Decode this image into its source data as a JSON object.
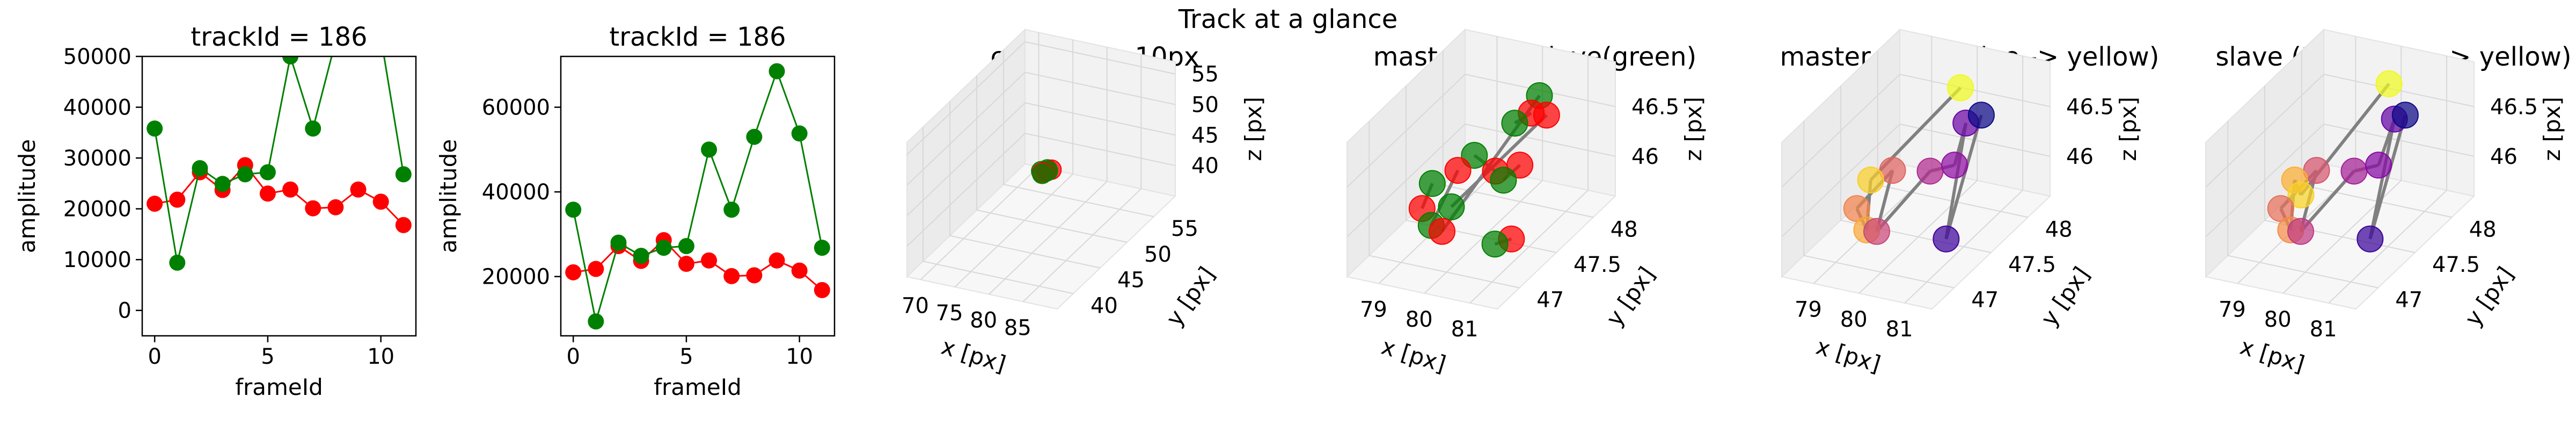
{
  "figure": {
    "suptitle": "Track at a glance"
  },
  "colors": {
    "master": "#ff0000",
    "slave": "#008000",
    "connector": "#808080",
    "pane": "#f2f2f2",
    "pane_grid": "#e3e3e3"
  },
  "chart_data": [
    {
      "type": "line",
      "title": "trackId = 186",
      "xlabel": "frameId",
      "ylabel": "amplitude",
      "xlim": [
        -0.55,
        11.55
      ],
      "ylim": [
        -5000,
        50000
      ],
      "x_ticks": [
        0,
        5,
        10
      ],
      "y_ticks": [
        0,
        10000,
        20000,
        30000,
        40000,
        50000
      ],
      "grid": false,
      "x": [
        0,
        1,
        2,
        3,
        4,
        5,
        6,
        7,
        8,
        9,
        10,
        11
      ],
      "series": [
        {
          "color": "red",
          "values": [
            21000,
            21800,
            27200,
            23700,
            28600,
            23000,
            23800,
            20100,
            20300,
            23800,
            21400,
            16800
          ]
        },
        {
          "color": "green",
          "values": [
            35800,
            9400,
            28000,
            24900,
            26800,
            27200,
            50000,
            35800,
            53000,
            68500,
            53800,
            26800
          ]
        }
      ]
    },
    {
      "type": "line",
      "title": "trackId = 186",
      "xlabel": "frameId",
      "ylabel": "amplitude",
      "xlim": [
        -0.55,
        11.55
      ],
      "ylim": [
        6000,
        72000
      ],
      "x_ticks": [
        0,
        5,
        10
      ],
      "y_ticks": [
        20000,
        40000,
        60000
      ],
      "grid": false,
      "x": [
        0,
        1,
        2,
        3,
        4,
        5,
        6,
        7,
        8,
        9,
        10,
        11
      ],
      "series": [
        {
          "color": "red",
          "values": [
            21000,
            21800,
            27200,
            23700,
            28600,
            23000,
            23800,
            20100,
            20300,
            23800,
            21400,
            16800
          ]
        },
        {
          "color": "green",
          "values": [
            35800,
            9400,
            28000,
            24900,
            26800,
            27200,
            50000,
            35800,
            53000,
            68500,
            53800,
            26800
          ]
        }
      ]
    },
    {
      "type": "scatter",
      "title": "context +- 10px",
      "xlabel": "x [px]",
      "ylabel": "y [px]",
      "zlabel": "z [px]",
      "xlim": [
        68,
        90
      ],
      "ylim": [
        37,
        59
      ],
      "zlim": [
        35,
        57
      ],
      "x_ticks": [
        70,
        75,
        80,
        85
      ],
      "y_ticks": [
        40,
        45,
        50,
        55
      ],
      "z_ticks": [
        40,
        45,
        50,
        55
      ],
      "points": [
        {
          "x": 80.1,
          "y": 47.6,
          "z": 46.3,
          "color": "red"
        },
        {
          "x": 79.6,
          "y": 47.4,
          "z": 46.1,
          "color": "red"
        },
        {
          "x": 80.6,
          "y": 47.9,
          "z": 46.4,
          "color": "red"
        },
        {
          "x": 79.9,
          "y": 47.8,
          "z": 46.0,
          "color": "red"
        },
        {
          "x": 79.4,
          "y": 47.5,
          "z": 46.2,
          "color": "green"
        },
        {
          "x": 80.3,
          "y": 47.6,
          "z": 46.4,
          "color": "green"
        },
        {
          "x": 79.7,
          "y": 47.3,
          "z": 46.0,
          "color": "green"
        },
        {
          "x": 80.0,
          "y": 47.9,
          "z": 46.3,
          "color": "green"
        }
      ]
    },
    {
      "type": "scatter",
      "title": "master(red) slave(green)",
      "xlabel": "x [px]",
      "ylabel": "y [px]",
      "zlabel": "z [px]",
      "xlim": [
        78.3,
        81.6
      ],
      "ylim": [
        46.7,
        48.3
      ],
      "zlim": [
        45.6,
        46.95
      ],
      "x_ticks": [
        79,
        80,
        81
      ],
      "y_ticks": [
        47.0,
        47.5,
        48.0
      ],
      "z_ticks": [
        46.0,
        46.5
      ],
      "points": [
        {
          "x": 79.3,
          "y": 47.1,
          "z": 46.1,
          "color": "red"
        },
        {
          "x": 79.6,
          "y": 47.4,
          "z": 46.3,
          "color": "red"
        },
        {
          "x": 80.1,
          "y": 47.6,
          "z": 46.2,
          "color": "red"
        },
        {
          "x": 80.4,
          "y": 47.9,
          "z": 46.6,
          "color": "red"
        },
        {
          "x": 80.8,
          "y": 47.5,
          "z": 46.4,
          "color": "red"
        },
        {
          "x": 81.1,
          "y": 47.2,
          "z": 45.9,
          "color": "red"
        },
        {
          "x": 79.9,
          "y": 47.0,
          "z": 46.0,
          "color": "red"
        },
        {
          "x": 80.9,
          "y": 47.8,
          "z": 46.7,
          "color": "red"
        },
        {
          "x": 79.2,
          "y": 47.3,
          "z": 46.2,
          "color": "green"
        },
        {
          "x": 79.5,
          "y": 47.1,
          "z": 45.95,
          "color": "green"
        },
        {
          "x": 79.8,
          "y": 47.5,
          "z": 46.4,
          "color": "green"
        },
        {
          "x": 80.2,
          "y": 47.8,
          "z": 46.55,
          "color": "green"
        },
        {
          "x": 80.6,
          "y": 47.4,
          "z": 46.3,
          "color": "green"
        },
        {
          "x": 80.9,
          "y": 47.1,
          "z": 45.9,
          "color": "green"
        },
        {
          "x": 80.5,
          "y": 47.95,
          "z": 46.75,
          "color": "green"
        },
        {
          "x": 79.7,
          "y": 47.25,
          "z": 46.05,
          "color": "green"
        }
      ]
    },
    {
      "type": "scatter",
      "title": "master (time: blue -> yellow)",
      "xlabel": "x [px]",
      "ylabel": "y [px]",
      "zlabel": "z [px]",
      "xlim": [
        78.3,
        81.6
      ],
      "ylim": [
        46.7,
        48.3
      ],
      "zlim": [
        45.6,
        46.95
      ],
      "x_ticks": [
        79,
        80,
        81
      ],
      "y_ticks": [
        47.0,
        47.5,
        48.0
      ],
      "z_ticks": [
        46.0,
        46.5
      ],
      "points": [
        {
          "x": 80.9,
          "y": 47.8,
          "z": 46.7,
          "t": 0
        },
        {
          "x": 81.1,
          "y": 47.2,
          "z": 45.9,
          "t": 1
        },
        {
          "x": 80.4,
          "y": 47.9,
          "z": 46.5,
          "t": 2
        },
        {
          "x": 80.8,
          "y": 47.5,
          "z": 46.4,
          "t": 3
        },
        {
          "x": 80.1,
          "y": 47.6,
          "z": 46.2,
          "t": 4
        },
        {
          "x": 79.9,
          "y": 47.0,
          "z": 46.0,
          "t": 5
        },
        {
          "x": 79.6,
          "y": 47.4,
          "z": 46.3,
          "t": 6
        },
        {
          "x": 79.3,
          "y": 47.1,
          "z": 46.1,
          "t": 7
        },
        {
          "x": 79.6,
          "y": 47.05,
          "z": 45.95,
          "t": 8
        },
        {
          "x": 79.2,
          "y": 47.35,
          "z": 46.2,
          "t": 9
        },
        {
          "x": 80.2,
          "y": 47.95,
          "z": 46.8,
          "t": 10
        }
      ]
    },
    {
      "type": "scatter",
      "title": "slave (time: blue -> yellow)",
      "xlabel": "x [px]",
      "ylabel": "y [px]",
      "zlabel": "z [px]",
      "xlim": [
        78.3,
        81.6
      ],
      "ylim": [
        46.7,
        48.3
      ],
      "zlim": [
        45.6,
        46.95
      ],
      "x_ticks": [
        79,
        80,
        81
      ],
      "y_ticks": [
        47.0,
        47.5,
        48.0
      ],
      "z_ticks": [
        46.0,
        46.5
      ],
      "points": [
        {
          "x": 80.9,
          "y": 47.8,
          "z": 46.7,
          "t": 0
        },
        {
          "x": 81.1,
          "y": 47.2,
          "z": 45.9,
          "t": 1
        },
        {
          "x": 80.5,
          "y": 47.9,
          "z": 46.55,
          "t": 2
        },
        {
          "x": 80.8,
          "y": 47.5,
          "z": 46.4,
          "t": 3
        },
        {
          "x": 80.1,
          "y": 47.6,
          "z": 46.2,
          "t": 4
        },
        {
          "x": 79.9,
          "y": 47.0,
          "z": 46.0,
          "t": 5
        },
        {
          "x": 79.6,
          "y": 47.4,
          "z": 46.3,
          "t": 6
        },
        {
          "x": 79.3,
          "y": 47.1,
          "z": 46.1,
          "t": 7
        },
        {
          "x": 79.6,
          "y": 47.05,
          "z": 45.95,
          "t": 8
        },
        {
          "x": 79.2,
          "y": 47.35,
          "z": 46.2,
          "t": 9
        },
        {
          "x": 79.5,
          "y": 47.25,
          "z": 46.15,
          "t": 10
        },
        {
          "x": 80.3,
          "y": 47.95,
          "z": 46.85,
          "t": 11
        }
      ]
    }
  ]
}
